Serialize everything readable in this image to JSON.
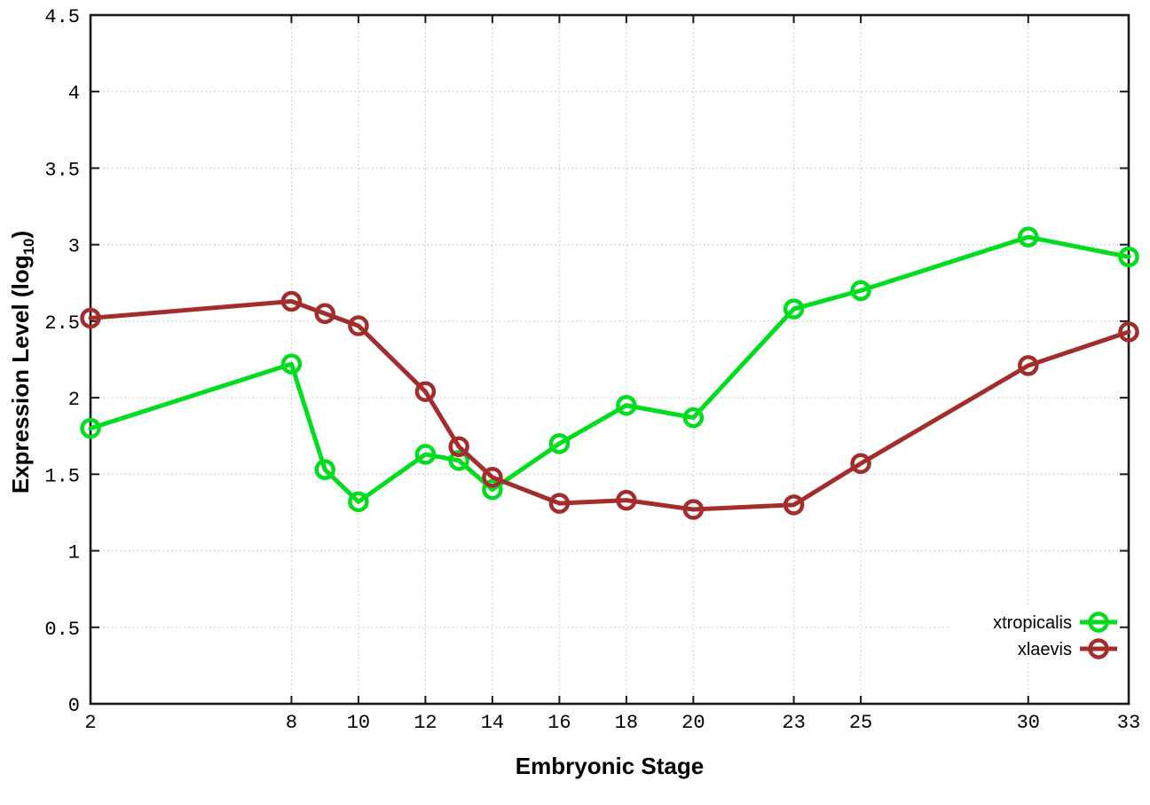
{
  "chart_data": {
    "type": "line",
    "title": "",
    "xlabel": "Embryonic Stage",
    "ylabel": {
      "prefix": "Expression Level (log",
      "subscript": "10",
      "suffix": ")"
    },
    "x": [
      2,
      8,
      9,
      10,
      12,
      13,
      14,
      16,
      18,
      20,
      23,
      25,
      30,
      33
    ],
    "series": [
      {
        "name": "xtropicalis",
        "color": "#00dc1e",
        "values": [
          1.8,
          2.22,
          1.53,
          1.32,
          1.63,
          1.59,
          1.4,
          1.7,
          1.95,
          1.87,
          2.58,
          2.7,
          3.05,
          2.92
        ]
      },
      {
        "name": "xlaevis",
        "color": "#a32c2c",
        "values": [
          2.52,
          2.63,
          2.55,
          2.47,
          2.04,
          1.68,
          1.48,
          1.31,
          1.33,
          1.27,
          1.3,
          1.57,
          2.21,
          2.43
        ]
      }
    ],
    "xticks": [
      2,
      8,
      10,
      12,
      14,
      16,
      18,
      20,
      23,
      25,
      30,
      33
    ],
    "yticks": [
      0,
      0.5,
      1,
      1.5,
      2,
      2.5,
      3,
      3.5,
      4,
      4.5
    ],
    "xlim": [
      2,
      33
    ],
    "ylim": [
      0,
      4.5
    ],
    "grid": true,
    "legend_position": "inside-bottom-right",
    "axis_color": "#1a1a1a",
    "grid_color": "#c6c6c6",
    "tick_label_color": "#000000",
    "marker": "open-circle"
  }
}
